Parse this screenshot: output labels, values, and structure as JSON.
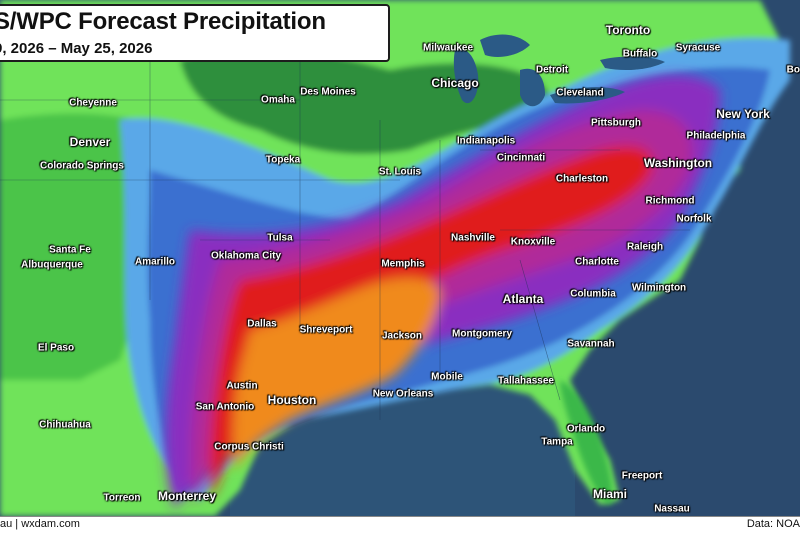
{
  "header": {
    "title": "S/WPC Forecast Precipitation",
    "date_range": "9, 2026 – May 25, 2026"
  },
  "footer": {
    "left": "au | wxdam.com",
    "right": "Data: NOA"
  },
  "colors": {
    "ocean": "#2b4a6e",
    "light_green": "#6fe35a",
    "green": "#3bb84a",
    "dark_green": "#1f7a3a",
    "light_blue": "#5aa8e8",
    "blue": "#3a6fd0",
    "purple": "#8a2fc0",
    "magenta": "#b02a9a",
    "red": "#e01a1a",
    "orange": "#f08a1a"
  },
  "cities": [
    {
      "name": "Toronto",
      "big": true
    },
    {
      "name": "Milwaukee",
      "big": false
    },
    {
      "name": "Buffalo",
      "big": false
    },
    {
      "name": "Syracuse",
      "big": false
    },
    {
      "name": "Bo",
      "big": false
    },
    {
      "name": "Chicago",
      "big": true
    },
    {
      "name": "Detroit",
      "big": false
    },
    {
      "name": "Cheyenne",
      "big": false
    },
    {
      "name": "Omaha",
      "big": false
    },
    {
      "name": "Des Moines",
      "big": false
    },
    {
      "name": "Cleveland",
      "big": false
    },
    {
      "name": "New York",
      "big": true
    },
    {
      "name": "Denver",
      "big": true
    },
    {
      "name": "Pittsburgh",
      "big": false
    },
    {
      "name": "Philadelphia",
      "big": false
    },
    {
      "name": "Indianapolis",
      "big": false
    },
    {
      "name": "Colorado Springs",
      "big": false
    },
    {
      "name": "Topeka",
      "big": false
    },
    {
      "name": "Cincinnati",
      "big": false
    },
    {
      "name": "Washington",
      "big": true
    },
    {
      "name": "St. Louis",
      "big": false
    },
    {
      "name": "Charleston",
      "big": false
    },
    {
      "name": "Richmond",
      "big": false
    },
    {
      "name": "Norfolk",
      "big": false
    },
    {
      "name": "Tulsa",
      "big": false
    },
    {
      "name": "Nashville",
      "big": false
    },
    {
      "name": "Knoxville",
      "big": false
    },
    {
      "name": "Raleigh",
      "big": false
    },
    {
      "name": "Santa Fe",
      "big": false
    },
    {
      "name": "Oklahoma City",
      "big": false
    },
    {
      "name": "Amarillo",
      "big": false
    },
    {
      "name": "Albuquerque",
      "big": false
    },
    {
      "name": "Memphis",
      "big": false
    },
    {
      "name": "Charlotte",
      "big": false
    },
    {
      "name": "Wilmington",
      "big": false
    },
    {
      "name": "Columbia",
      "big": false
    },
    {
      "name": "Atlanta",
      "big": true
    },
    {
      "name": "Dallas",
      "big": false
    },
    {
      "name": "Shreveport",
      "big": false
    },
    {
      "name": "Jackson",
      "big": false
    },
    {
      "name": "Montgomery",
      "big": false
    },
    {
      "name": "El Paso",
      "big": false
    },
    {
      "name": "Savannah",
      "big": false
    },
    {
      "name": "Mobile",
      "big": false
    },
    {
      "name": "Tallahassee",
      "big": false
    },
    {
      "name": "Austin",
      "big": false
    },
    {
      "name": "New Orleans",
      "big": false
    },
    {
      "name": "Houston",
      "big": true
    },
    {
      "name": "San Antonio",
      "big": false
    },
    {
      "name": "Chihuahua",
      "big": false
    },
    {
      "name": "Orlando",
      "big": false
    },
    {
      "name": "Tampa",
      "big": false
    },
    {
      "name": "Corpus Christi",
      "big": false
    },
    {
      "name": "Freeport",
      "big": false
    },
    {
      "name": "Torreon",
      "big": false
    },
    {
      "name": "Monterrey",
      "big": true
    },
    {
      "name": "Miami",
      "big": true
    },
    {
      "name": "Nassau",
      "big": false
    }
  ]
}
